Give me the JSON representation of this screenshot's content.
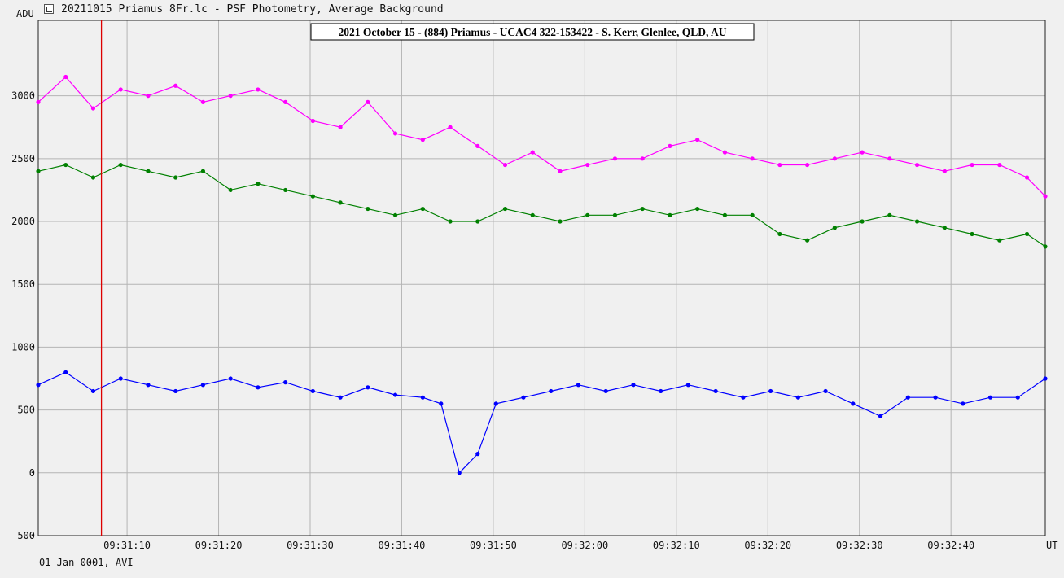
{
  "window": {
    "title": "20211015 Priamus 8Fr.lc - PSF Photometry, Average Background",
    "icon": "lightcurve-app-icon"
  },
  "footer": {
    "info": "01 Jan 0001, AVI"
  },
  "chart_data": {
    "type": "line",
    "title": "2021 October 15 - (884) Priamus - UCAC4 322-153422 - S. Kerr, Glenlee, QLD, AU",
    "ylabel": "ADU",
    "xlabel": "UT",
    "ylim": [
      -500,
      3600
    ],
    "xlim": [
      "09:31:00.3",
      "09:32:50.3"
    ],
    "y_ticks": [
      -500,
      0,
      500,
      1000,
      1500,
      2000,
      2500,
      3000
    ],
    "x_ticks": [
      "09:31:10",
      "09:31:20",
      "09:31:30",
      "09:31:40",
      "09:31:50",
      "09:32:00",
      "09:32:10",
      "09:32:20",
      "09:32:30",
      "09:32:40"
    ],
    "grid": true,
    "cursor_time": "09:31:07.2",
    "series_colors": [
      "#ff00ff",
      "#008000",
      "#0000ff"
    ],
    "series": [
      {
        "x": [
          "09:31:00.3",
          "09:31:03.3",
          "09:31:06.3",
          "09:31:09.3",
          "09:31:12.3",
          "09:31:15.3",
          "09:31:18.3",
          "09:31:21.3",
          "09:31:24.3",
          "09:31:27.3",
          "09:31:30.3",
          "09:31:33.3",
          "09:31:36.3",
          "09:31:39.3",
          "09:31:42.3",
          "09:31:45.3",
          "09:31:48.3",
          "09:31:51.3",
          "09:31:54.3",
          "09:31:57.3",
          "09:32:00.3",
          "09:32:03.3",
          "09:32:06.3",
          "09:32:09.3",
          "09:32:12.3",
          "09:32:15.3",
          "09:32:18.3",
          "09:32:21.3",
          "09:32:24.3",
          "09:32:27.3",
          "09:32:30.3",
          "09:32:33.3",
          "09:32:36.3",
          "09:32:39.3",
          "09:32:42.3",
          "09:32:45.3",
          "09:32:48.3",
          "09:32:50.3"
        ],
        "values": [
          2950,
          3150,
          2900,
          3050,
          3000,
          3080,
          2950,
          3000,
          3050,
          2950,
          2800,
          2750,
          2950,
          2700,
          2650,
          2750,
          2600,
          2450,
          2550,
          2400,
          2450,
          2500,
          2500,
          2600,
          2650,
          2550,
          2500,
          2450,
          2450,
          2500,
          2550,
          2500,
          2450,
          2400,
          2450,
          2450,
          2350,
          2200
        ]
      },
      {
        "x": [
          "09:31:00.3",
          "09:31:03.3",
          "09:31:06.3",
          "09:31:09.3",
          "09:31:12.3",
          "09:31:15.3",
          "09:31:18.3",
          "09:31:21.3",
          "09:31:24.3",
          "09:31:27.3",
          "09:31:30.3",
          "09:31:33.3",
          "09:31:36.3",
          "09:31:39.3",
          "09:31:42.3",
          "09:31:45.3",
          "09:31:48.3",
          "09:31:51.3",
          "09:31:54.3",
          "09:31:57.3",
          "09:32:00.3",
          "09:32:03.3",
          "09:32:06.3",
          "09:32:09.3",
          "09:32:12.3",
          "09:32:15.3",
          "09:32:18.3",
          "09:32:21.3",
          "09:32:24.3",
          "09:32:27.3",
          "09:32:30.3",
          "09:32:33.3",
          "09:32:36.3",
          "09:32:39.3",
          "09:32:42.3",
          "09:32:45.3",
          "09:32:48.3",
          "09:32:50.3"
        ],
        "values": [
          2400,
          2450,
          2350,
          2450,
          2400,
          2350,
          2400,
          2250,
          2300,
          2250,
          2200,
          2150,
          2100,
          2050,
          2100,
          2000,
          2000,
          2100,
          2050,
          2000,
          2050,
          2050,
          2100,
          2050,
          2100,
          2050,
          2050,
          1900,
          1850,
          1950,
          2000,
          2050,
          2000,
          1950,
          1900,
          1850,
          1900,
          1800
        ]
      },
      {
        "x": [
          "09:31:00.3",
          "09:31:03.3",
          "09:31:06.3",
          "09:31:09.3",
          "09:31:12.3",
          "09:31:15.3",
          "09:31:18.3",
          "09:31:21.3",
          "09:31:24.3",
          "09:31:27.3",
          "09:31:30.3",
          "09:31:33.3",
          "09:31:36.3",
          "09:31:39.3",
          "09:31:42.3",
          "09:31:44.3",
          "09:31:46.3",
          "09:31:48.3",
          "09:31:50.3",
          "09:31:53.3",
          "09:31:56.3",
          "09:31:59.3",
          "09:32:02.3",
          "09:32:05.3",
          "09:32:08.3",
          "09:32:11.3",
          "09:32:14.3",
          "09:32:17.3",
          "09:32:20.3",
          "09:32:23.3",
          "09:32:26.3",
          "09:32:29.3",
          "09:32:32.3",
          "09:32:35.3",
          "09:32:38.3",
          "09:32:41.3",
          "09:32:44.3",
          "09:32:47.3",
          "09:32:50.3"
        ],
        "values": [
          700,
          800,
          650,
          750,
          700,
          650,
          700,
          750,
          680,
          720,
          650,
          600,
          680,
          620,
          600,
          550,
          0,
          150,
          550,
          600,
          650,
          700,
          650,
          700,
          650,
          700,
          650,
          600,
          650,
          600,
          650,
          550,
          450,
          600,
          600,
          550,
          600,
          600,
          750
        ]
      }
    ]
  }
}
